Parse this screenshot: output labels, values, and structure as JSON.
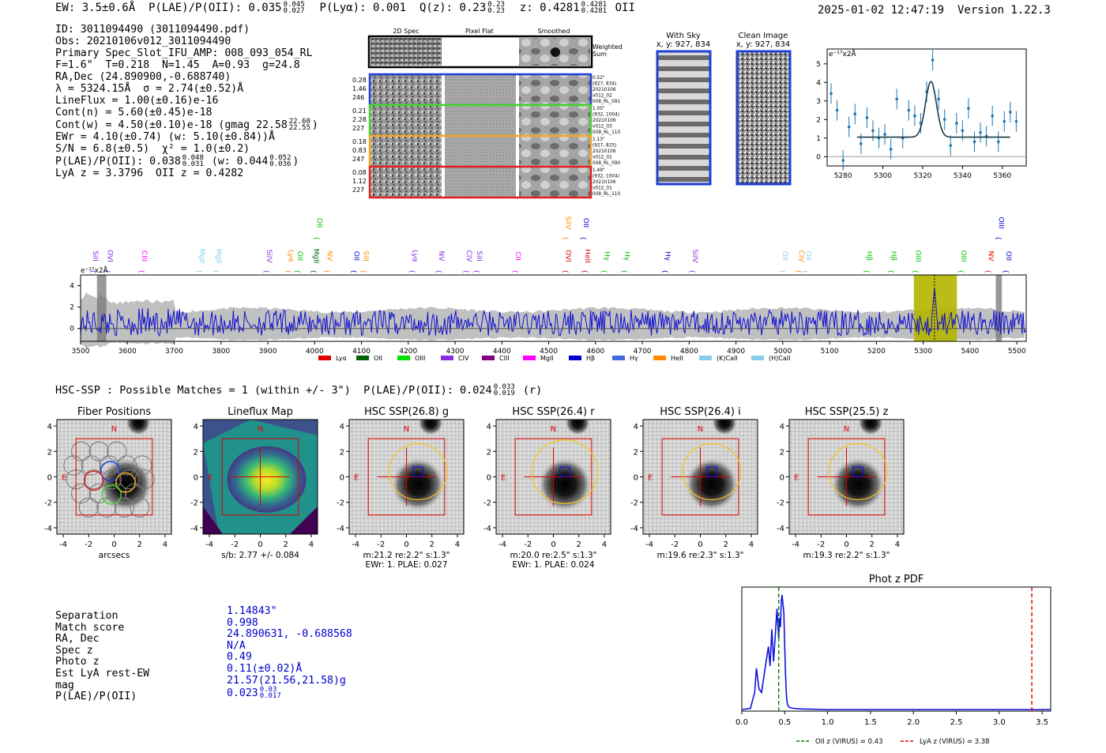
{
  "header": {
    "left": "EW: 3.5±0.6Å  P(LAE)/P(OII): 0.035",
    "left_sup": "0.045",
    "left_sub": "0.027",
    "left_mid": "  P(Lyα): 0.001  Q(z): 0.23",
    "qz_sup": "0.23",
    "qz_sub": "0.23",
    "left_end": "  z: 0.4281",
    "z_sup": "0.4281",
    "z_sub": "0.4281",
    "left_tail": " OII",
    "timestamp": "2025-01-02 12:47:19",
    "version": "Version 1.22.3"
  },
  "info": {
    "id": "ID: 3011094490 (3011094490.pdf)",
    "obs": "Obs: 20210106v012_3011094490",
    "primary": "Primary Spec_Slot_IFU_AMP: 008_093_054_RL",
    "fit": "F=1.6\"  T=0.218  N=1.45  A=0.93  g=24.8",
    "radec": "RA,Dec (24.890900,-0.688740)",
    "lambda": "λ = 5324.15Å  σ = 2.74(±0.52)Å",
    "lineflux": "LineFlux = 1.00(±0.16)e-16",
    "contn": "Cont(n) = 5.60(±0.45)e-18",
    "contw": "Cont(w) = 4.50(±0.10)e-18 (gmag 22.58",
    "contw_sup": "22.60",
    "contw_sub": "22.55",
    "contw_end": ")",
    "ewr": "EWr = 4.10(±0.74) (w: 5.10(±0.84))Å",
    "sn": "S/N = 6.8(±0.5)  χ² = 1.0(±0.2)",
    "plae": "P(LAE)/P(OII): 0.038",
    "plae_sup": "0.048",
    "plae_sub": "0.031",
    "plae_w": " (w: 0.044",
    "plae_w_sup": "0.052",
    "plae_w_sub": "0.036",
    "plae_end": ")",
    "lya": "LyA z = 3.3796  OII z = 0.4282"
  },
  "cutouts": {
    "col_labels": [
      "2D Spec",
      "Pixel Flat",
      "Smoothed"
    ],
    "weighted_sum": [
      "Weighted",
      "Sum"
    ],
    "rows": [
      {
        "left": [
          "0.28",
          "1.46",
          "246"
        ],
        "right": [
          "0.52\"",
          "(927, 834)",
          "20210106",
          "v012_02",
          "008_RL_091"
        ],
        "color": "#1f3fd6"
      },
      {
        "left": [
          "0.21",
          "2.28",
          "227"
        ],
        "right": [
          "1.05\"",
          "(932, 1004)",
          "20210106",
          "v012_03",
          "008_RL_110"
        ],
        "color": "#3fd62a"
      },
      {
        "left": [
          "0.18",
          "0.83",
          "247"
        ],
        "right": [
          "1.13\"",
          "(927, 825)",
          "20210106",
          "v012_01",
          "008_RL_090"
        ],
        "color": "#f5a623"
      },
      {
        "left": [
          "0.08",
          "1.12",
          "227"
        ],
        "right": [
          "1.49\"",
          "(932, 1004)",
          "20210106",
          "v012_01",
          "008_RL_110"
        ],
        "color": "#e02020"
      }
    ],
    "with_sky": [
      "With Sky",
      "x, y: 927, 834"
    ],
    "clean_image": [
      "Clean Image",
      "x, y: 927, 834"
    ]
  },
  "line_fit_chart": {
    "type": "scatter",
    "ylabel": "e⁻¹⁷x2Å",
    "xticks": [
      "5280",
      "5300",
      "5320",
      "5340",
      "5360"
    ],
    "yticks": [
      "0",
      "1",
      "2",
      "3",
      "4",
      "5"
    ],
    "xlim": [
      5272,
      5372
    ],
    "ylim": [
      -0.5,
      5.8
    ],
    "x": [
      5274,
      5277,
      5280,
      5283,
      5286,
      5289,
      5292,
      5295,
      5298,
      5301,
      5304,
      5307,
      5310,
      5313,
      5316,
      5319,
      5322,
      5325,
      5328,
      5331,
      5334,
      5337,
      5340,
      5343,
      5346,
      5349,
      5352,
      5355,
      5358,
      5361,
      5364,
      5367
    ],
    "y": [
      3.4,
      2.5,
      -0.2,
      1.6,
      2.3,
      0.7,
      2.1,
      1.4,
      1.0,
      1.2,
      0.4,
      3.1,
      1.0,
      2.5,
      2.2,
      1.8,
      3.5,
      5.2,
      3.1,
      2.0,
      0.6,
      1.8,
      1.4,
      2.6,
      0.8,
      1.3,
      1.1,
      2.2,
      0.8,
      1.9,
      2.4,
      1.9
    ],
    "fit": {
      "continuum": 1.05,
      "amp": 3.0,
      "center": 5324.15,
      "sigma": 2.74
    }
  },
  "full_spectrum": {
    "ylabel": "e⁻¹⁷x2Å",
    "yticks": [
      "0",
      "2",
      "4"
    ],
    "xlim": [
      3500,
      5520
    ],
    "ylim": [
      -1.2,
      5.0
    ],
    "xticks": [
      "3500",
      "3600",
      "3700",
      "3800",
      "3900",
      "4000",
      "4100",
      "4200",
      "4300",
      "4400",
      "4500",
      "4600",
      "4700",
      "4800",
      "4900",
      "5000",
      "5100",
      "5200",
      "5300",
      "5400",
      "5500"
    ],
    "highlight_range": [
      5280,
      5372
    ],
    "line_marker": 5324,
    "masked_ranges": [
      [
        3535,
        3555
      ],
      [
        5455,
        5468
      ]
    ],
    "line_labels": [
      {
        "label": "SiII",
        "x": 3527,
        "row": 2,
        "color": "#8a2be2"
      },
      {
        "label": "OVI",
        "x": 3558,
        "row": 2,
        "color": "#8a2be2"
      },
      {
        "label": "CIII",
        "x": 3632,
        "row": 2,
        "color": "#ff00ff"
      },
      {
        "label": "MgII",
        "x": 3755,
        "row": 2,
        "color": "#87ceeb"
      },
      {
        "label": "MgII",
        "x": 3790,
        "row": 2,
        "color": "#87ceeb"
      },
      {
        "label": "SiIV",
        "x": 3898,
        "row": 2,
        "color": "#8a2be2"
      },
      {
        "label": "Lyα",
        "x": 3945,
        "row": 2,
        "color": "#ff8c00"
      },
      {
        "label": "OII",
        "x": 3964,
        "row": 2,
        "color": "#00c000"
      },
      {
        "label": "MgII",
        "x": 3999,
        "row": 2,
        "color": "#006400"
      },
      {
        "label": "OII",
        "x": 4005,
        "row": 0,
        "color": "#00c000"
      },
      {
        "label": "NV",
        "x": 4027,
        "row": 2,
        "color": "#ff8c00"
      },
      {
        "label": "OII",
        "x": 4085,
        "row": 2,
        "color": "#0000cc"
      },
      {
        "label": "SiII",
        "x": 4105,
        "row": 2,
        "color": "#ff8c00"
      },
      {
        "label": "Lyα",
        "x": 4210,
        "row": 2,
        "color": "#8a2be2"
      },
      {
        "label": "NV",
        "x": 4266,
        "row": 2,
        "color": "#8a2be2"
      },
      {
        "label": "CIV",
        "x": 4325,
        "row": 2,
        "color": "#8a2be2"
      },
      {
        "label": "SiII",
        "x": 4347,
        "row": 2,
        "color": "#8a2be2"
      },
      {
        "label": "CII",
        "x": 4430,
        "row": 2,
        "color": "#ff00ff"
      },
      {
        "label": "SiIV",
        "x": 4537,
        "row": 0,
        "color": "#ff8c00"
      },
      {
        "label": "OVI",
        "x": 4537,
        "row": 2,
        "color": "#e00000"
      },
      {
        "label": "OII",
        "x": 4575,
        "row": 0,
        "color": "#0000cc"
      },
      {
        "label": "HeII",
        "x": 4578,
        "row": 2,
        "color": "#e00000"
      },
      {
        "label": "Hγ",
        "x": 4620,
        "row": 2,
        "color": "#00c000"
      },
      {
        "label": "Hγ",
        "x": 4663,
        "row": 2,
        "color": "#00c000"
      },
      {
        "label": "Hγ",
        "x": 4750,
        "row": 2,
        "color": "#0000cc"
      },
      {
        "label": "SiIV",
        "x": 4808,
        "row": 2,
        "color": "#8a2be2"
      },
      {
        "label": "OII",
        "x": 5000,
        "row": 2,
        "color": "#87ceeb"
      },
      {
        "label": "CIV",
        "x": 5035,
        "row": 2,
        "color": "#ff8c00"
      },
      {
        "label": "OII",
        "x": 5050,
        "row": 2,
        "color": "#87ceeb"
      },
      {
        "label": "Hβ",
        "x": 5180,
        "row": 2,
        "color": "#00c000"
      },
      {
        "label": "Hβ",
        "x": 5232,
        "row": 2,
        "color": "#00c000"
      },
      {
        "label": "OIII",
        "x": 5285,
        "row": 2,
        "color": "#00c000"
      },
      {
        "label": "OIII",
        "x": 5382,
        "row": 2,
        "color": "#00c000"
      },
      {
        "label": "NV",
        "x": 5440,
        "row": 2,
        "color": "#e00000"
      },
      {
        "label": "OIII",
        "x": 5462,
        "row": 0,
        "color": "#0000cc"
      },
      {
        "label": "OII",
        "x": 5478,
        "row": 2,
        "color": "#0000cc"
      }
    ],
    "legend": [
      {
        "label": "Lyα",
        "color": "#e00000"
      },
      {
        "label": "OII",
        "color": "#006400"
      },
      {
        "label": "OIII",
        "color": "#00e000"
      },
      {
        "label": "CIV",
        "color": "#8a2be2"
      },
      {
        "label": "CIII",
        "color": "#800080"
      },
      {
        "label": "MgII",
        "color": "#ff00ff"
      },
      {
        "label": "Hβ",
        "color": "#0000cc"
      },
      {
        "label": "Hγ",
        "color": "#4169e1"
      },
      {
        "label": "HeII",
        "color": "#ff8c00"
      },
      {
        "label": "(K)CaII",
        "color": "#87ceeb"
      },
      {
        "label": "(H)CaII",
        "color": "#87ceeb"
      }
    ]
  },
  "hsc": {
    "summary": "HSC-SSP : Possible Matches = 1 (within +/- 3\")  P(LAE)/P(OII): 0.024",
    "summary_sup": "0.033",
    "summary_sub": "0.019",
    "summary_end": " (r)",
    "ticks": [
      "4",
      "2",
      "0",
      "-2",
      "-4"
    ],
    "xticks": [
      "-4",
      "-2",
      "0",
      "2",
      "4"
    ],
    "north": "N",
    "east": "E",
    "panels": [
      {
        "title": "Fiber Positions",
        "caption": [
          "arcsecs"
        ]
      },
      {
        "title": "Lineflux Map",
        "caption": [
          "s/b: 2.77 +/- 0.084"
        ]
      },
      {
        "title": "HSC SSP(26.8) g",
        "caption": [
          "m:21.2  re:2.2\"  s:1.3\"",
          "EWr: 1. PLAE: 0.027"
        ]
      },
      {
        "title": "HSC SSP(26.4) r",
        "caption": [
          "m:20.0  re:2.5\"  s:1.3\"",
          "EWr: 1. PLAE: 0.024"
        ]
      },
      {
        "title": "HSC SSP(26.4) i",
        "caption": [
          "m:19.6  re:2.3\"  s:1.3\""
        ]
      },
      {
        "title": "HSC SSP(25.5) z",
        "caption": [
          "m:19.3  re:2.2\"  s:1.3\""
        ]
      }
    ]
  },
  "match": {
    "labels": [
      "Separation",
      "Match score",
      "RA, Dec",
      "Spec z",
      "Photo z",
      "Est LyA rest-EW",
      "mag",
      "P(LAE)/P(OII)"
    ],
    "values": [
      "1.14843\"",
      "0.998",
      "24.890631, -0.688568",
      "N/A",
      "0.49",
      "0.11(±0.02)Å",
      "21.57(21.56,21.58)g",
      "0.023"
    ],
    "plae_sup": "0.03",
    "plae_sub": "0.017"
  },
  "photz_chart": {
    "type": "line",
    "title": "Phot z PDF",
    "xlim": [
      0.0,
      3.6
    ],
    "xticks": [
      "0.0",
      "0.5",
      "1.0",
      "1.5",
      "2.0",
      "2.5",
      "3.0",
      "3.5"
    ],
    "x": [
      0.0,
      0.1,
      0.15,
      0.17,
      0.2,
      0.23,
      0.26,
      0.29,
      0.31,
      0.33,
      0.35,
      0.37,
      0.39,
      0.41,
      0.43,
      0.44,
      0.45,
      0.46,
      0.47,
      0.48,
      0.49,
      0.5,
      0.51,
      0.52,
      0.53,
      0.55,
      0.6,
      0.7,
      1.0,
      2.0,
      3.6
    ],
    "y": [
      0.0,
      0.01,
      0.15,
      0.36,
      0.18,
      0.15,
      0.3,
      0.45,
      0.55,
      0.38,
      0.7,
      0.42,
      0.65,
      0.88,
      0.62,
      0.8,
      0.72,
      0.95,
      1.0,
      0.92,
      0.85,
      0.55,
      0.3,
      0.12,
      0.05,
      0.02,
      0.01,
      0.005,
      0.0,
      0.0,
      0.0
    ],
    "oii_z": 0.43,
    "lya_z": 3.38,
    "legend": [
      "OII z (VIRUS) = 0.43",
      "LyA z (VIRUS) = 3.38"
    ],
    "oii_color": "#008000",
    "lya_color": "#e00000"
  }
}
